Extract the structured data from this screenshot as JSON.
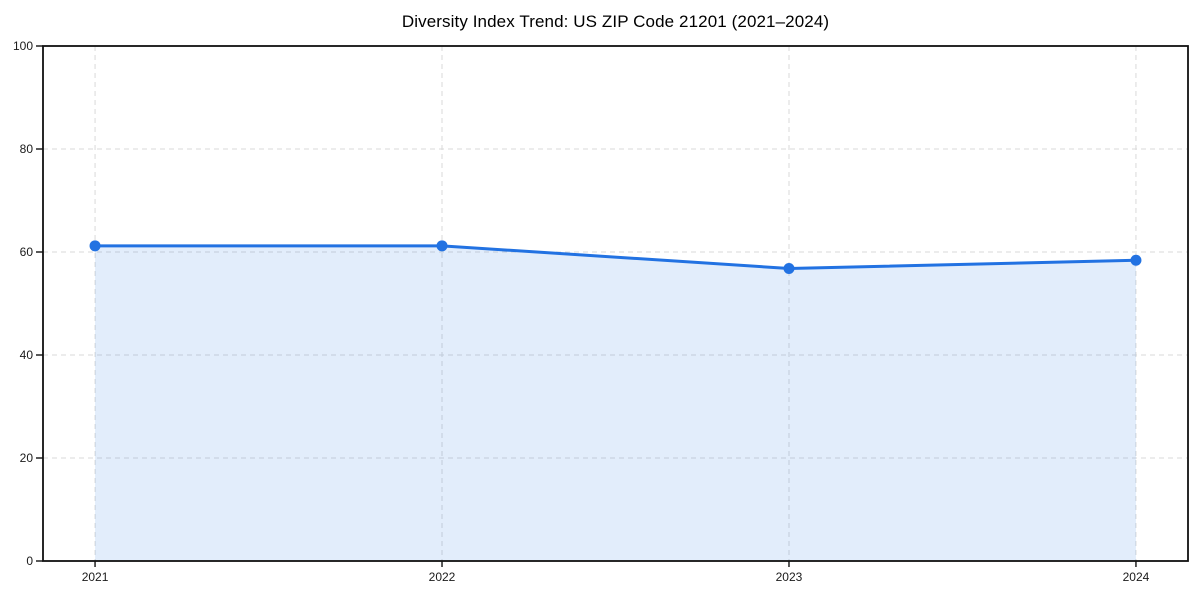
{
  "figure": {
    "background": "#ffffff"
  },
  "chart_data": {
    "type": "area",
    "title": "Diversity Index Trend: US ZIP Code 21201 (2021–2024)",
    "x": [
      2021,
      2022,
      2023,
      2024
    ],
    "xticklabels": [
      "2021",
      "2022",
      "2023",
      "2024"
    ],
    "series": [
      {
        "name": "Diversity Index",
        "values": [
          61.2,
          61.2,
          56.8,
          58.4
        ]
      }
    ],
    "xlabel": "",
    "ylabel": "",
    "xlim": [
      2020.85,
      2024.15
    ],
    "ylim": [
      0,
      100
    ],
    "yticks": [
      0,
      20,
      40,
      60,
      80,
      100
    ],
    "grid": "dashed, horizontal and vertical",
    "legend_position": "none",
    "marker": "circle",
    "colors": {
      "line": "#2272e2",
      "marker": "#2272e2",
      "fill": "#2272e2",
      "fill_opacity": 0.13,
      "grid": "#d9d9d9",
      "axis": "#111111",
      "tick_label": "#1a1a1a",
      "title": "#000000"
    }
  }
}
